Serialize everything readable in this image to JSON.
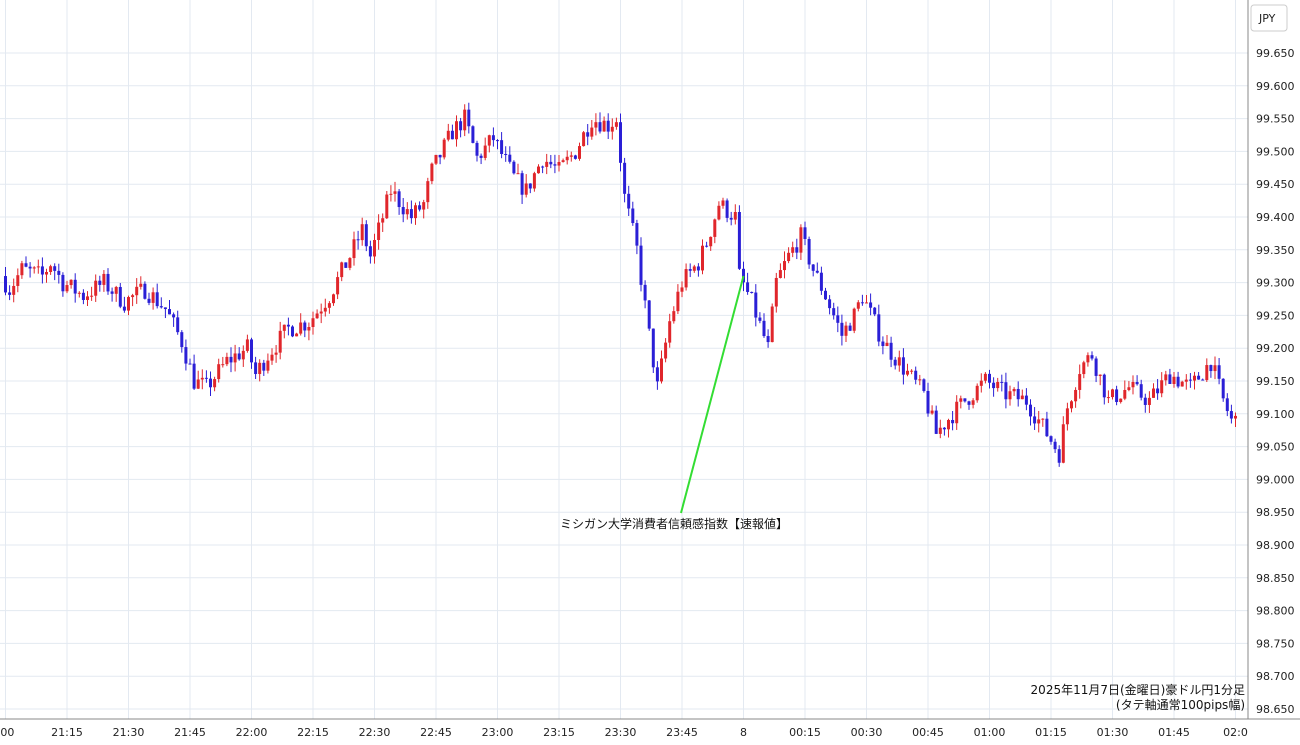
{
  "chart_data": {
    "type": "candlestick",
    "currency_label": "JPY",
    "ylim": [
      98.63,
      99.68
    ],
    "y_ticks": [
      "99.650",
      "99.600",
      "99.550",
      "99.500",
      "99.450",
      "99.400",
      "99.350",
      "99.300",
      "99.250",
      "99.200",
      "99.150",
      "99.100",
      "99.050",
      "99.000",
      "98.950",
      "98.900",
      "98.850",
      "98.800",
      "98.750",
      "98.700",
      "98.650"
    ],
    "x_ticks": [
      ":00",
      "21:15",
      "21:30",
      "21:45",
      "22:00",
      "22:15",
      "22:30",
      "22:45",
      "23:00",
      "23:15",
      "23:30",
      "23:45",
      "8",
      "00:15",
      "00:30",
      "00:45",
      "01:00",
      "01:15",
      "01:30",
      "01:45",
      "02:0"
    ],
    "grid": true,
    "colors": {
      "up": "#e0262b",
      "down": "#2a1fd6",
      "annotation_line": "#33dd33"
    },
    "annotation": {
      "text": "ミシガン大学消費者信頼感指数【速報値】",
      "time": "00:00",
      "price": 99.31
    },
    "footer": [
      "2025年11月7日(金曜日)豪ドル円1分足",
      "(タテ軸通常100pips幅)"
    ],
    "series": [
      {
        "time_start": "21:00",
        "interval_minutes": 1,
        "anchors_time_price": [
          [
            "21:00",
            99.31
          ],
          [
            "21:02",
            99.29
          ],
          [
            "21:05",
            99.32
          ],
          [
            "21:10",
            99.31
          ],
          [
            "21:12",
            99.33
          ],
          [
            "21:15",
            99.3
          ],
          [
            "21:20",
            99.28
          ],
          [
            "21:25",
            99.3
          ],
          [
            "21:30",
            99.27
          ],
          [
            "21:35",
            99.29
          ],
          [
            "21:40",
            99.26
          ],
          [
            "21:44",
            99.21
          ],
          [
            "21:47",
            99.15
          ],
          [
            "21:50",
            99.14
          ],
          [
            "21:55",
            99.18
          ],
          [
            "22:00",
            99.2
          ],
          [
            "22:02",
            99.16
          ],
          [
            "22:05",
            99.19
          ],
          [
            "22:10",
            99.23
          ],
          [
            "22:15",
            99.24
          ],
          [
            "22:20",
            99.28
          ],
          [
            "22:25",
            99.34
          ],
          [
            "22:28",
            99.38
          ],
          [
            "22:30",
            99.34
          ],
          [
            "22:33",
            99.4
          ],
          [
            "22:35",
            99.44
          ],
          [
            "22:40",
            99.4
          ],
          [
            "22:43",
            99.42
          ],
          [
            "22:45",
            99.47
          ],
          [
            "22:50",
            99.53
          ],
          [
            "22:53",
            99.55
          ],
          [
            "22:56",
            99.49
          ],
          [
            "23:00",
            99.52
          ],
          [
            "23:05",
            99.46
          ],
          [
            "23:08",
            99.44
          ],
          [
            "23:12",
            99.49
          ],
          [
            "23:16",
            99.47
          ],
          [
            "23:20",
            99.5
          ],
          [
            "23:24",
            99.55
          ],
          [
            "23:28",
            99.54
          ],
          [
            "23:30",
            99.55
          ],
          [
            "23:32",
            99.43
          ],
          [
            "23:35",
            99.35
          ],
          [
            "23:38",
            99.22
          ],
          [
            "23:40",
            99.14
          ],
          [
            "23:43",
            99.24
          ],
          [
            "23:46",
            99.3
          ],
          [
            "23:50",
            99.33
          ],
          [
            "23:52",
            99.36
          ],
          [
            "23:55",
            99.42
          ],
          [
            "23:59",
            99.4
          ],
          [
            "00:00",
            99.31
          ],
          [
            "00:03",
            99.27
          ],
          [
            "00:07",
            99.2
          ],
          [
            "00:09",
            99.3
          ],
          [
            "00:12",
            99.34
          ],
          [
            "00:15",
            99.37
          ],
          [
            "00:18",
            99.32
          ],
          [
            "00:21",
            99.28
          ],
          [
            "00:25",
            99.22
          ],
          [
            "00:28",
            99.25
          ],
          [
            "00:30",
            99.28
          ],
          [
            "00:35",
            99.21
          ],
          [
            "00:40",
            99.17
          ],
          [
            "00:45",
            99.13
          ],
          [
            "00:48",
            99.07
          ],
          [
            "00:52",
            99.1
          ],
          [
            "00:55",
            99.12
          ],
          [
            "01:00",
            99.15
          ],
          [
            "01:05",
            99.13
          ],
          [
            "01:10",
            99.12
          ],
          [
            "01:15",
            99.07
          ],
          [
            "01:18",
            99.04
          ],
          [
            "01:20",
            99.11
          ],
          [
            "01:23",
            99.17
          ],
          [
            "01:26",
            99.19
          ],
          [
            "01:30",
            99.12
          ],
          [
            "01:35",
            99.14
          ],
          [
            "01:40",
            99.12
          ],
          [
            "01:45",
            99.16
          ],
          [
            "01:50",
            99.14
          ],
          [
            "01:55",
            99.18
          ],
          [
            "01:58",
            99.12
          ],
          [
            "02:00",
            99.09
          ]
        ]
      }
    ]
  }
}
